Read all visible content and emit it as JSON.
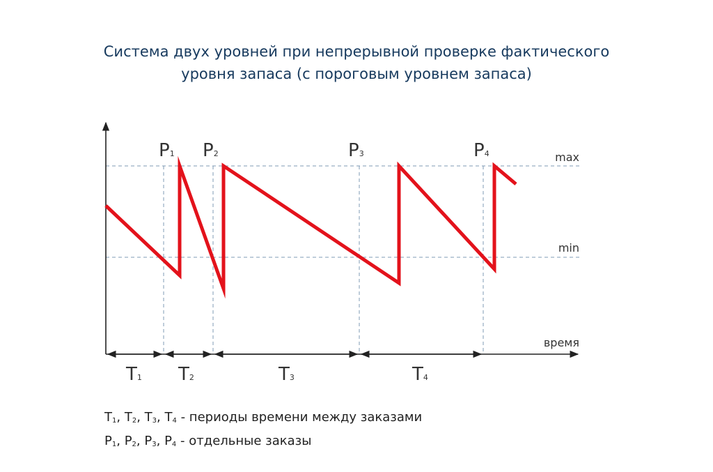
{
  "title": {
    "line1": "Система двух уровней при непрерывной проверке фактического",
    "line2": "уровня запаса (с пороговым уровнем запаса)"
  },
  "levels": {
    "max_label": "max",
    "min_label": "min"
  },
  "axis": {
    "x_label": "время"
  },
  "orders": [
    {
      "letter": "P",
      "index": "1"
    },
    {
      "letter": "P",
      "index": "2"
    },
    {
      "letter": "P",
      "index": "3"
    },
    {
      "letter": "P",
      "index": "4"
    }
  ],
  "periods": [
    {
      "letter": "T",
      "index": "1"
    },
    {
      "letter": "T",
      "index": "2"
    },
    {
      "letter": "T",
      "index": "3"
    },
    {
      "letter": "T",
      "index": "4"
    }
  ],
  "legend": {
    "periods_text": "- периоды времени между заказами",
    "orders_text": "- отдельные заказы"
  },
  "colors": {
    "stock_line": "#e3121b",
    "axis": "#222222",
    "guide": "#7f9bb6",
    "title": "#173a5e"
  }
}
